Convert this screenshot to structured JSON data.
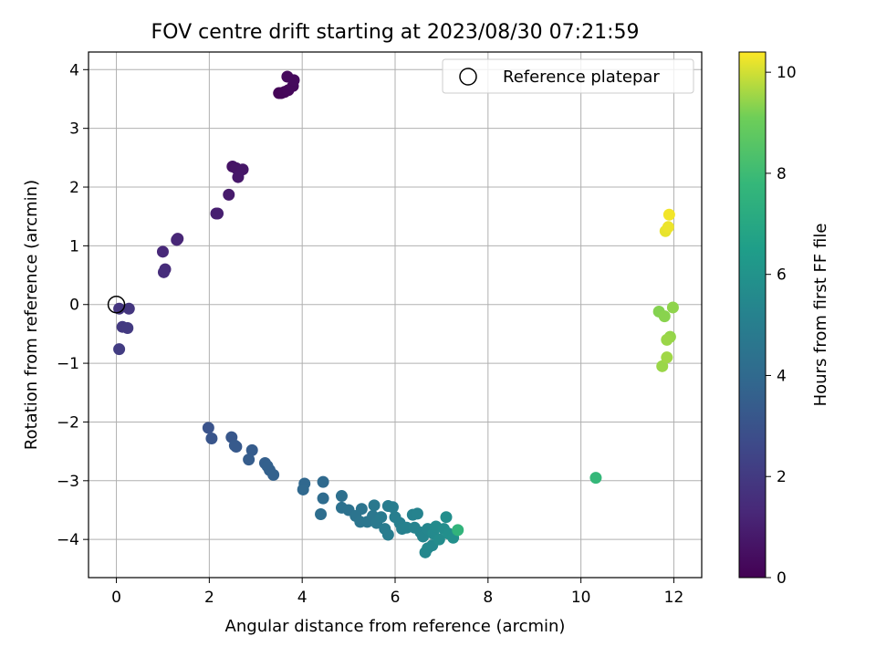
{
  "chart_data": {
    "type": "scatter",
    "title": "FOV centre drift starting at 2023/08/30 07:21:59",
    "xlabel": "Angular distance from reference (arcmin)",
    "ylabel": "Rotation from reference (arcmin)",
    "xlim": [
      -0.6,
      12.6
    ],
    "ylim": [
      -4.65,
      4.3
    ],
    "xticks": [
      0,
      2,
      4,
      6,
      8,
      10,
      12
    ],
    "yticks": [
      -4,
      -3,
      -2,
      -1,
      0,
      1,
      2,
      3,
      4
    ],
    "xtick_labels": [
      "0",
      "2",
      "4",
      "6",
      "8",
      "10",
      "12"
    ],
    "ytick_labels": [
      "−4",
      "−3",
      "−2",
      "−1",
      "0",
      "1",
      "2",
      "3",
      "4"
    ],
    "grid": true,
    "legend": {
      "position": "upper-right",
      "entries": [
        {
          "label": "Reference platepar",
          "marker": "open-circle"
        }
      ]
    },
    "reference_point": {
      "x": 0,
      "y": 0
    },
    "colorbar": {
      "label": "Hours from first FF file",
      "range": [
        0,
        10.4
      ],
      "ticks": [
        0,
        2,
        4,
        6,
        8,
        10
      ],
      "tick_labels": [
        "0",
        "2",
        "4",
        "6",
        "8",
        "10"
      ],
      "colormap": "viridis"
    },
    "points": [
      {
        "x": 3.55,
        "y": 3.6,
        "c": 0.1
      },
      {
        "x": 3.62,
        "y": 3.62,
        "c": 0.15
      },
      {
        "x": 3.7,
        "y": 3.65,
        "c": 0.2
      },
      {
        "x": 3.8,
        "y": 3.72,
        "c": 0.25
      },
      {
        "x": 3.68,
        "y": 3.88,
        "c": 0.3
      },
      {
        "x": 3.82,
        "y": 3.82,
        "c": 0.3
      },
      {
        "x": 3.5,
        "y": 3.6,
        "c": 0.1
      },
      {
        "x": 2.5,
        "y": 2.35,
        "c": 0.6
      },
      {
        "x": 2.58,
        "y": 2.32,
        "c": 0.65
      },
      {
        "x": 2.72,
        "y": 2.3,
        "c": 0.7
      },
      {
        "x": 2.62,
        "y": 2.17,
        "c": 0.75
      },
      {
        "x": 2.42,
        "y": 1.87,
        "c": 0.85
      },
      {
        "x": 2.18,
        "y": 1.55,
        "c": 1.0
      },
      {
        "x": 2.15,
        "y": 1.55,
        "c": 1.0
      },
      {
        "x": 1.32,
        "y": 1.12,
        "c": 1.2
      },
      {
        "x": 1.3,
        "y": 1.1,
        "c": 1.25
      },
      {
        "x": 1.0,
        "y": 0.9,
        "c": 1.35
      },
      {
        "x": 1.05,
        "y": 0.6,
        "c": 1.45
      },
      {
        "x": 1.02,
        "y": 0.55,
        "c": 1.5
      },
      {
        "x": 0.06,
        "y": -0.07,
        "c": 1.8
      },
      {
        "x": 0.27,
        "y": -0.07,
        "c": 1.85
      },
      {
        "x": 0.13,
        "y": -0.38,
        "c": 1.95
      },
      {
        "x": 0.24,
        "y": -0.4,
        "c": 2.0
      },
      {
        "x": 0.06,
        "y": -0.76,
        "c": 2.1
      },
      {
        "x": 1.98,
        "y": -2.1,
        "c": 3.0
      },
      {
        "x": 2.05,
        "y": -2.28,
        "c": 3.1
      },
      {
        "x": 2.48,
        "y": -2.26,
        "c": 3.2
      },
      {
        "x": 2.58,
        "y": -2.42,
        "c": 3.25
      },
      {
        "x": 2.55,
        "y": -2.4,
        "c": 3.3
      },
      {
        "x": 2.92,
        "y": -2.48,
        "c": 3.4
      },
      {
        "x": 2.85,
        "y": -2.64,
        "c": 3.45
      },
      {
        "x": 3.2,
        "y": -2.7,
        "c": 3.55
      },
      {
        "x": 3.3,
        "y": -2.82,
        "c": 3.6
      },
      {
        "x": 3.38,
        "y": -2.9,
        "c": 3.65
      },
      {
        "x": 3.25,
        "y": -2.75,
        "c": 3.6
      },
      {
        "x": 4.05,
        "y": -3.05,
        "c": 3.9
      },
      {
        "x": 4.02,
        "y": -3.15,
        "c": 3.95
      },
      {
        "x": 4.45,
        "y": -3.02,
        "c": 4.0
      },
      {
        "x": 4.45,
        "y": -3.3,
        "c": 4.1
      },
      {
        "x": 4.4,
        "y": -3.57,
        "c": 4.2
      },
      {
        "x": 4.85,
        "y": -3.26,
        "c": 4.3
      },
      {
        "x": 4.85,
        "y": -3.46,
        "c": 4.35
      },
      {
        "x": 5.0,
        "y": -3.5,
        "c": 4.4
      },
      {
        "x": 5.15,
        "y": -3.6,
        "c": 4.5
      },
      {
        "x": 5.28,
        "y": -3.48,
        "c": 4.5
      },
      {
        "x": 5.25,
        "y": -3.7,
        "c": 4.55
      },
      {
        "x": 5.4,
        "y": -3.7,
        "c": 4.6
      },
      {
        "x": 5.52,
        "y": -3.6,
        "c": 4.65
      },
      {
        "x": 5.55,
        "y": -3.42,
        "c": 4.7
      },
      {
        "x": 5.6,
        "y": -3.72,
        "c": 4.75
      },
      {
        "x": 5.7,
        "y": -3.62,
        "c": 4.8
      },
      {
        "x": 5.78,
        "y": -3.82,
        "c": 4.85
      },
      {
        "x": 5.85,
        "y": -3.92,
        "c": 4.9
      },
      {
        "x": 5.85,
        "y": -3.43,
        "c": 4.9
      },
      {
        "x": 5.95,
        "y": -3.45,
        "c": 4.95
      },
      {
        "x": 6.0,
        "y": -3.62,
        "c": 5.0
      },
      {
        "x": 6.1,
        "y": -3.72,
        "c": 5.05
      },
      {
        "x": 6.15,
        "y": -3.82,
        "c": 5.1
      },
      {
        "x": 6.25,
        "y": -3.8,
        "c": 5.15
      },
      {
        "x": 6.38,
        "y": -3.58,
        "c": 5.2
      },
      {
        "x": 6.48,
        "y": -3.56,
        "c": 5.25
      },
      {
        "x": 6.42,
        "y": -3.8,
        "c": 5.25
      },
      {
        "x": 6.55,
        "y": -3.88,
        "c": 5.3
      },
      {
        "x": 6.6,
        "y": -3.95,
        "c": 5.35
      },
      {
        "x": 6.7,
        "y": -3.82,
        "c": 5.4
      },
      {
        "x": 6.65,
        "y": -4.22,
        "c": 5.45
      },
      {
        "x": 6.7,
        "y": -4.15,
        "c": 5.5
      },
      {
        "x": 6.8,
        "y": -4.1,
        "c": 5.5
      },
      {
        "x": 6.82,
        "y": -3.9,
        "c": 5.55
      },
      {
        "x": 6.88,
        "y": -3.78,
        "c": 5.6
      },
      {
        "x": 6.95,
        "y": -4.0,
        "c": 5.65
      },
      {
        "x": 7.05,
        "y": -3.82,
        "c": 5.7
      },
      {
        "x": 7.1,
        "y": -3.62,
        "c": 5.75
      },
      {
        "x": 7.15,
        "y": -3.9,
        "c": 5.8
      },
      {
        "x": 7.25,
        "y": -3.97,
        "c": 5.85
      },
      {
        "x": 7.35,
        "y": -3.84,
        "c": 7.6
      },
      {
        "x": 10.32,
        "y": -2.95,
        "c": 7.8
      },
      {
        "x": 11.68,
        "y": -0.12,
        "c": 9.3
      },
      {
        "x": 11.8,
        "y": -0.2,
        "c": 9.35
      },
      {
        "x": 11.98,
        "y": -0.05,
        "c": 9.4
      },
      {
        "x": 11.92,
        "y": -0.55,
        "c": 9.45
      },
      {
        "x": 11.85,
        "y": -0.6,
        "c": 9.5
      },
      {
        "x": 11.85,
        "y": -0.9,
        "c": 9.55
      },
      {
        "x": 11.75,
        "y": -1.05,
        "c": 9.5
      },
      {
        "x": 11.82,
        "y": 1.25,
        "c": 10.2
      },
      {
        "x": 11.88,
        "y": 1.32,
        "c": 10.25
      },
      {
        "x": 11.9,
        "y": 1.53,
        "c": 10.3
      }
    ]
  }
}
